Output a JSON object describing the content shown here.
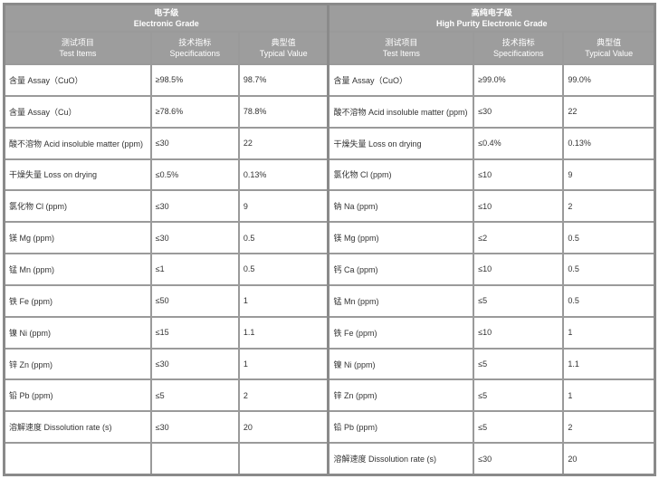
{
  "left": {
    "title_cn": "电子级",
    "title_en": "Electronic Grade",
    "columns": [
      {
        "cn": "测试项目",
        "en": "Test Items"
      },
      {
        "cn": "技术指标",
        "en": "Specifications"
      },
      {
        "cn": "典型值",
        "en": "Typical Value"
      }
    ],
    "rows": [
      [
        "含量 Assay（CuO）",
        "≥98.5%",
        "98.7%"
      ],
      [
        "含量 Assay（Cu）",
        "≥78.6%",
        "78.8%"
      ],
      [
        "酸不溶物 Acid insoluble matter (ppm)",
        "≤30",
        "22"
      ],
      [
        "干燥失量 Loss on drying",
        "≤0.5%",
        "0.13%"
      ],
      [
        "氯化物 Cl (ppm)",
        "≤30",
        "9"
      ],
      [
        "镁 Mg (ppm)",
        "≤30",
        "0.5"
      ],
      [
        "锰 Mn (ppm)",
        "≤1",
        "0.5"
      ],
      [
        "铁 Fe (ppm)",
        "≤50",
        "1"
      ],
      [
        "镍 Ni (ppm)",
        "≤15",
        "1.1"
      ],
      [
        "锌 Zn (ppm)",
        "≤30",
        "1"
      ],
      [
        "铅 Pb (ppm)",
        "≤5",
        "2"
      ],
      [
        "溶解速度 Dissolution rate (s)",
        "≤30",
        "20"
      ],
      [
        "",
        "",
        ""
      ]
    ]
  },
  "right": {
    "title_cn": "高纯电子级",
    "title_en": "High Purity Electronic Grade",
    "columns": [
      {
        "cn": "测试项目",
        "en": "Test Items"
      },
      {
        "cn": "技术指标",
        "en": "Specifications"
      },
      {
        "cn": "典型值",
        "en": "Typical Value"
      }
    ],
    "rows": [
      [
        "含量 Assay（CuO）",
        "≥99.0%",
        "99.0%"
      ],
      [
        "酸不溶物 Acid insoluble matter (ppm)",
        "≤30",
        "22"
      ],
      [
        "干燥失量 Loss on drying",
        "≤0.4%",
        "0.13%"
      ],
      [
        "氯化物 Cl (ppm)",
        "≤10",
        "9"
      ],
      [
        "钠 Na (ppm)",
        "≤10",
        "2"
      ],
      [
        "镁 Mg (ppm)",
        "≤2",
        "0.5"
      ],
      [
        "钙 Ca (ppm)",
        "≤10",
        "0.5"
      ],
      [
        "锰 Mn (ppm)",
        "≤5",
        "0.5"
      ],
      [
        "铁 Fe (ppm)",
        "≤10",
        "1"
      ],
      [
        "镍 Ni (ppm)",
        "≤5",
        "1.1"
      ],
      [
        "锌 Zn (ppm)",
        "≤5",
        "1"
      ],
      [
        "铅 Pb (ppm)",
        "≤5",
        "2"
      ],
      [
        "溶解速度 Dissolution rate (s)",
        "≤30",
        "20"
      ]
    ]
  }
}
